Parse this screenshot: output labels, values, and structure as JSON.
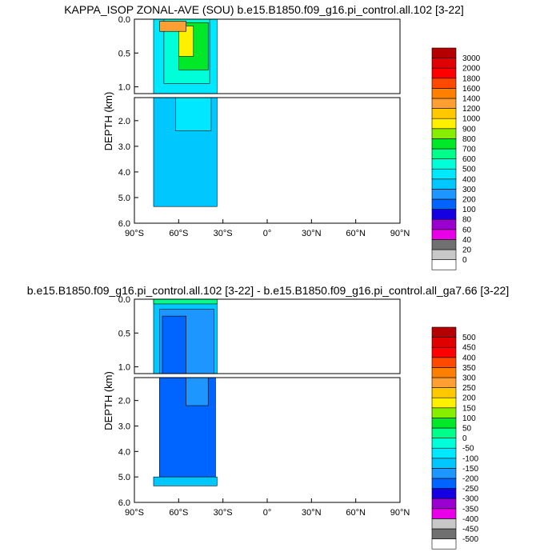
{
  "chart_data": [
    {
      "type": "contour",
      "title": "KAPPA_ISOP ZONAL-AVE (SOU) b.e15.B1850.f09_g16.pi_control.all.102 [3-22]",
      "ylabel": "DEPTH (km)",
      "xlabel": "",
      "xlim": [
        -90,
        90
      ],
      "ylim": [
        6.0,
        0.0
      ],
      "upper_panel_ylim": [
        1.1,
        0.0
      ],
      "xticks": [
        "90°S",
        "60°S",
        "30°S",
        "0°",
        "30°N",
        "60°N",
        "90°N"
      ],
      "yticks_upper": [
        "0.0",
        "0.5",
        "1.0"
      ],
      "yticks_lower": [
        "2.0",
        "3.0",
        "4.0",
        "5.0",
        "6.0"
      ],
      "data_extent": {
        "lat_min": -78,
        "lat_max": -34,
        "max_depth_km": 5.35
      },
      "colorbar_levels": [
        "0",
        "20",
        "40",
        "60",
        "80",
        "100",
        "200",
        "300",
        "400",
        "500",
        "600",
        "700",
        "800",
        "900",
        "1000",
        "1200",
        "1400",
        "1600",
        "1800",
        "2000",
        "3000"
      ],
      "colorbar_colors": [
        "#ffffff",
        "#c8c8c8",
        "#707070",
        "#e800e8",
        "#9a00d0",
        "#1400e0",
        "#0064ff",
        "#1e96ff",
        "#00c8ff",
        "#00e8ff",
        "#00ffd8",
        "#00ff8a",
        "#00e828",
        "#88ee00",
        "#fff000",
        "#ffc800",
        "#ff9e32",
        "#ff8000",
        "#ff4800",
        "#ff0000",
        "#e00000",
        "#b40000"
      ],
      "fill_regions": [
        {
          "level": "400",
          "lat": [
            -77,
            -34
          ],
          "depth_km": [
            0.0,
            1.1
          ]
        },
        {
          "level": "500",
          "lat": [
            -70,
            -39
          ],
          "depth_km": [
            0.0,
            0.95
          ]
        },
        {
          "level": "700",
          "lat": [
            -60,
            -40
          ],
          "depth_km": [
            0.05,
            0.75
          ]
        },
        {
          "level": "900",
          "lat": [
            -60,
            -50
          ],
          "depth_km": [
            0.1,
            0.55
          ]
        },
        {
          "level": "1200",
          "lat": [
            -73,
            -55
          ],
          "depth_km": [
            0.03,
            0.18
          ]
        },
        {
          "level": "300",
          "lat": [
            -77,
            -34
          ],
          "depth_km": [
            1.1,
            5.35
          ]
        },
        {
          "level": "400",
          "lat": [
            -62,
            -38
          ],
          "depth_km": [
            1.1,
            2.4
          ]
        }
      ]
    },
    {
      "type": "contour",
      "title": "b.e15.B1850.f09_g16.pi_control.all.102 [3-22] - b.e15.B1850.f09_g16.pi_control.all_ga7.66 [3-22]",
      "ylabel": "DEPTH (km)",
      "xlabel": "",
      "xlim": [
        -90,
        90
      ],
      "ylim": [
        6.0,
        0.0
      ],
      "upper_panel_ylim": [
        1.1,
        0.0
      ],
      "xticks": [
        "90°S",
        "60°S",
        "30°S",
        "0°",
        "30°N",
        "60°N",
        "90°N"
      ],
      "yticks_upper": [
        "0.0",
        "0.5",
        "1.0"
      ],
      "yticks_lower": [
        "2.0",
        "3.0",
        "4.0",
        "5.0",
        "6.0"
      ],
      "data_extent": {
        "lat_min": -78,
        "lat_max": -34,
        "max_depth_km": 5.35
      },
      "colorbar_levels": [
        "-500",
        "-450",
        "-400",
        "-350",
        "-300",
        "-250",
        "-200",
        "-150",
        "-100",
        "-50",
        "0",
        "50",
        "100",
        "150",
        "200",
        "250",
        "300",
        "350",
        "400",
        "450",
        "500"
      ],
      "colorbar_colors": [
        "#ffffff",
        "#707070",
        "#c8c8c8",
        "#e800e8",
        "#9a00d0",
        "#1400e0",
        "#0064ff",
        "#1e96ff",
        "#00c8ff",
        "#00e8ff",
        "#00ffd8",
        "#00ff8a",
        "#00e828",
        "#88ee00",
        "#fff000",
        "#ffc800",
        "#ff9e32",
        "#ff8000",
        "#ff4800",
        "#ff0000",
        "#e00000",
        "#b40000"
      ],
      "fill_regions": [
        {
          "level": "-150",
          "lat": [
            -77,
            -34
          ],
          "depth_km": [
            0.0,
            1.1
          ]
        },
        {
          "level": "-200",
          "lat": [
            -73,
            -36
          ],
          "depth_km": [
            0.15,
            1.1
          ]
        },
        {
          "level": "-250",
          "lat": [
            -71,
            -55
          ],
          "depth_km": [
            0.25,
            1.1
          ]
        },
        {
          "level": "0",
          "lat": [
            -77,
            -34
          ],
          "depth_km": [
            0.0,
            0.07
          ]
        },
        {
          "level": "-250",
          "lat": [
            -73,
            -35
          ],
          "depth_km": [
            1.1,
            5.0
          ]
        },
        {
          "level": "-200",
          "lat": [
            -55,
            -40
          ],
          "depth_km": [
            1.1,
            2.2
          ]
        },
        {
          "level": "-150",
          "lat": [
            -77,
            -34
          ],
          "depth_km": [
            5.0,
            5.35
          ]
        }
      ]
    }
  ]
}
